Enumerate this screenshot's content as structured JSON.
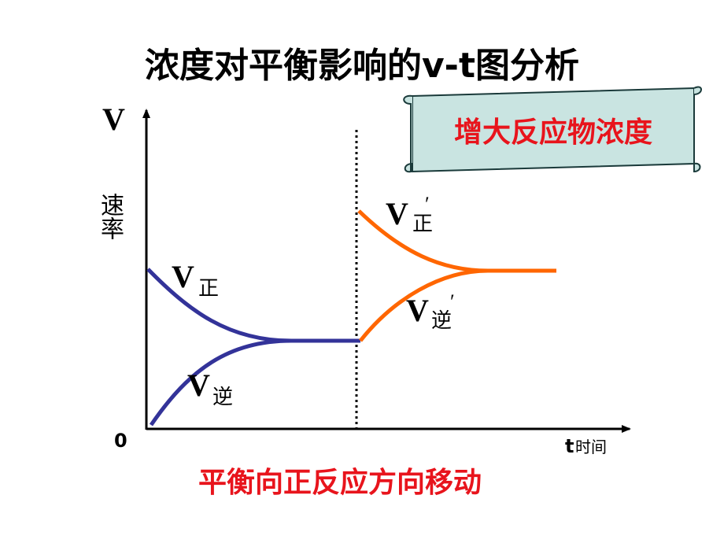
{
  "title": "浓度对平衡影响的v-t图分析",
  "banner": "增大反应物浓度",
  "y_axis": {
    "symbol": "V",
    "label": "速率"
  },
  "x_axis": {
    "symbol": "t",
    "label": "时间"
  },
  "origin": "0",
  "curves": [
    {
      "symbol": "V",
      "subscript": "正"
    },
    {
      "symbol": "V",
      "subscript": "逆"
    },
    {
      "symbol": "V",
      "subscript": "正",
      "prime": "′"
    },
    {
      "symbol": "V",
      "subscript": "逆",
      "prime": "′"
    }
  ],
  "caption": "平衡向正反应方向移动"
}
